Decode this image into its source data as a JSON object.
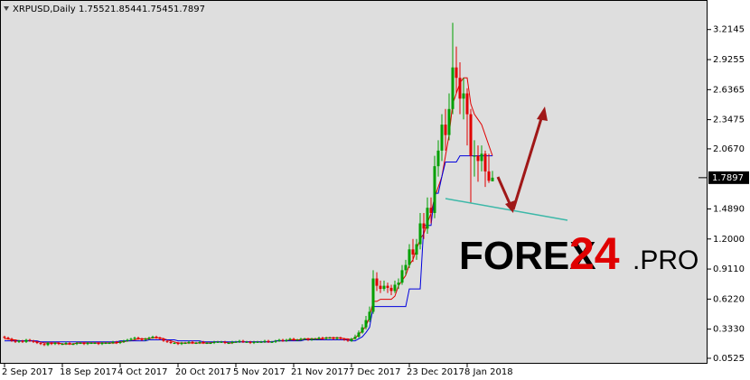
{
  "chart_data": {
    "type": "candlestick",
    "title": "XRPUSD,Daily",
    "annotations": [
      "FOREX",
      "24",
      ".PRO"
    ],
    "categories": [
      "2 Sep 2017",
      null,
      null,
      null,
      null,
      null,
      null,
      null,
      null,
      null,
      null,
      null,
      null,
      null,
      null,
      null,
      "18 Sep 2017",
      null,
      null,
      null,
      null,
      null,
      null,
      null,
      null,
      null,
      null,
      null,
      null,
      null,
      null,
      null,
      "4 Oct 2017",
      null,
      null,
      null,
      null,
      null,
      null,
      null,
      null,
      null,
      null,
      null,
      null,
      null,
      null,
      null,
      "20 Oct 2017",
      null,
      null,
      null,
      null,
      null,
      null,
      null,
      null,
      null,
      null,
      null,
      null,
      null,
      null,
      null,
      "5 Nov 2017",
      null,
      null,
      null,
      null,
      null,
      null,
      null,
      null,
      null,
      null,
      null,
      null,
      null,
      null,
      null,
      "21 Nov 2017",
      null,
      null,
      null,
      null,
      null,
      null,
      null,
      null,
      null,
      null,
      null,
      null,
      null,
      null,
      null,
      "7 Dec 2017",
      null,
      null,
      null,
      null,
      null,
      null,
      null,
      null,
      null,
      null,
      null,
      null,
      null,
      null,
      null,
      "23 Dec 2017",
      null,
      null,
      null,
      null,
      null,
      null,
      null,
      null,
      null,
      null,
      null,
      null,
      null,
      null,
      null,
      "8 Jan 2018",
      null,
      null,
      null,
      null,
      null,
      null,
      null
    ],
    "ylim": [
      0,
      3.49
    ],
    "yticks": [
      3.2145,
      2.9255,
      2.6365,
      2.3475,
      {
        "value": 2.067,
        "label": "2.0670"
      },
      {
        "value": 1.489,
        "label": "1.4890"
      },
      {
        "value": 1.2,
        "label": "1.2000"
      },
      {
        "value": 0.911,
        "label": "0.9110"
      },
      {
        "value": 0.622,
        "label": "0.6220"
      },
      {
        "value": 0.333,
        "label": "0.3330"
      },
      0.0525
    ],
    "up_color": "#00a000",
    "down_color": "#e00000",
    "series": [
      {
        "type": "candlestick",
        "values": [
          [
            0.26,
            0.27,
            0.24,
            0.25
          ],
          [
            0.25,
            0.26,
            0.23,
            0.24
          ],
          [
            0.24,
            0.25,
            0.21,
            0.22
          ],
          [
            0.22,
            0.23,
            0.2,
            0.21
          ],
          [
            0.21,
            0.23,
            0.2,
            0.22
          ],
          [
            0.22,
            0.23,
            0.2,
            0.21
          ],
          [
            0.21,
            0.24,
            0.2,
            0.23
          ],
          [
            0.23,
            0.24,
            0.21,
            0.22
          ],
          [
            0.22,
            0.23,
            0.2,
            0.21
          ],
          [
            0.21,
            0.22,
            0.19,
            0.2
          ],
          [
            0.2,
            0.21,
            0.18,
            0.19
          ],
          [
            0.19,
            0.2,
            0.17,
            0.18
          ],
          [
            0.18,
            0.21,
            0.17,
            0.2
          ],
          [
            0.2,
            0.21,
            0.18,
            0.19
          ],
          [
            0.19,
            0.21,
            0.18,
            0.2
          ],
          [
            0.2,
            0.21,
            0.18,
            0.19
          ],
          [
            0.19,
            0.2,
            0.18,
            0.19
          ],
          [
            0.19,
            0.21,
            0.18,
            0.2
          ],
          [
            0.2,
            0.21,
            0.18,
            0.19
          ],
          [
            0.19,
            0.2,
            0.18,
            0.19
          ],
          [
            0.19,
            0.21,
            0.18,
            0.2
          ],
          [
            0.2,
            0.21,
            0.19,
            0.2
          ],
          [
            0.2,
            0.21,
            0.18,
            0.19
          ],
          [
            0.19,
            0.21,
            0.18,
            0.2
          ],
          [
            0.2,
            0.21,
            0.19,
            0.2
          ],
          [
            0.2,
            0.21,
            0.19,
            0.2
          ],
          [
            0.2,
            0.21,
            0.18,
            0.19
          ],
          [
            0.19,
            0.21,
            0.18,
            0.2
          ],
          [
            0.2,
            0.21,
            0.19,
            0.2
          ],
          [
            0.2,
            0.21,
            0.19,
            0.2
          ],
          [
            0.2,
            0.22,
            0.19,
            0.21
          ],
          [
            0.21,
            0.22,
            0.19,
            0.2
          ],
          [
            0.2,
            0.22,
            0.19,
            0.21
          ],
          [
            0.21,
            0.23,
            0.2,
            0.22
          ],
          [
            0.22,
            0.24,
            0.21,
            0.23
          ],
          [
            0.23,
            0.25,
            0.22,
            0.24
          ],
          [
            0.24,
            0.26,
            0.23,
            0.25
          ],
          [
            0.25,
            0.26,
            0.23,
            0.24
          ],
          [
            0.24,
            0.25,
            0.22,
            0.23
          ],
          [
            0.23,
            0.25,
            0.22,
            0.24
          ],
          [
            0.24,
            0.26,
            0.23,
            0.25
          ],
          [
            0.25,
            0.27,
            0.24,
            0.26
          ],
          [
            0.26,
            0.27,
            0.24,
            0.25
          ],
          [
            0.25,
            0.26,
            0.23,
            0.24
          ],
          [
            0.24,
            0.25,
            0.21,
            0.22
          ],
          [
            0.22,
            0.23,
            0.2,
            0.21
          ],
          [
            0.21,
            0.22,
            0.19,
            0.2
          ],
          [
            0.2,
            0.21,
            0.19,
            0.2
          ],
          [
            0.2,
            0.21,
            0.18,
            0.19
          ],
          [
            0.19,
            0.21,
            0.18,
            0.2
          ],
          [
            0.2,
            0.21,
            0.19,
            0.2
          ],
          [
            0.2,
            0.22,
            0.19,
            0.21
          ],
          [
            0.21,
            0.22,
            0.19,
            0.2
          ],
          [
            0.2,
            0.21,
            0.19,
            0.2
          ],
          [
            0.2,
            0.22,
            0.19,
            0.21
          ],
          [
            0.21,
            0.22,
            0.19,
            0.2
          ],
          [
            0.2,
            0.21,
            0.19,
            0.2
          ],
          [
            0.2,
            0.21,
            0.19,
            0.2
          ],
          [
            0.2,
            0.22,
            0.19,
            0.21
          ],
          [
            0.21,
            0.22,
            0.2,
            0.21
          ],
          [
            0.21,
            0.22,
            0.2,
            0.21
          ],
          [
            0.21,
            0.22,
            0.19,
            0.2
          ],
          [
            0.2,
            0.21,
            0.19,
            0.2
          ],
          [
            0.2,
            0.22,
            0.19,
            0.21
          ],
          [
            0.21,
            0.22,
            0.2,
            0.21
          ],
          [
            0.21,
            0.23,
            0.2,
            0.22
          ],
          [
            0.22,
            0.23,
            0.2,
            0.21
          ],
          [
            0.21,
            0.22,
            0.2,
            0.21
          ],
          [
            0.21,
            0.22,
            0.19,
            0.2
          ],
          [
            0.2,
            0.22,
            0.19,
            0.21
          ],
          [
            0.21,
            0.22,
            0.2,
            0.21
          ],
          [
            0.21,
            0.22,
            0.2,
            0.21
          ],
          [
            0.21,
            0.23,
            0.2,
            0.22
          ],
          [
            0.22,
            0.23,
            0.2,
            0.21
          ],
          [
            0.21,
            0.22,
            0.2,
            0.21
          ],
          [
            0.21,
            0.23,
            0.2,
            0.22
          ],
          [
            0.22,
            0.24,
            0.21,
            0.23
          ],
          [
            0.23,
            0.24,
            0.21,
            0.22
          ],
          [
            0.22,
            0.24,
            0.21,
            0.23
          ],
          [
            0.23,
            0.25,
            0.22,
            0.24
          ],
          [
            0.24,
            0.25,
            0.22,
            0.23
          ],
          [
            0.23,
            0.24,
            0.22,
            0.23
          ],
          [
            0.23,
            0.25,
            0.22,
            0.24
          ],
          [
            0.24,
            0.25,
            0.23,
            0.24
          ],
          [
            0.24,
            0.25,
            0.22,
            0.23
          ],
          [
            0.23,
            0.25,
            0.22,
            0.24
          ],
          [
            0.24,
            0.25,
            0.23,
            0.24
          ],
          [
            0.24,
            0.26,
            0.23,
            0.25
          ],
          [
            0.25,
            0.26,
            0.23,
            0.24
          ],
          [
            0.24,
            0.26,
            0.23,
            0.25
          ],
          [
            0.25,
            0.26,
            0.24,
            0.25
          ],
          [
            0.25,
            0.26,
            0.23,
            0.24
          ],
          [
            0.24,
            0.26,
            0.23,
            0.25
          ],
          [
            0.25,
            0.26,
            0.23,
            0.24
          ],
          [
            0.24,
            0.25,
            0.22,
            0.23
          ],
          [
            0.23,
            0.24,
            0.21,
            0.22
          ],
          [
            0.22,
            0.25,
            0.21,
            0.24
          ],
          [
            0.24,
            0.28,
            0.23,
            0.26
          ],
          [
            0.26,
            0.32,
            0.25,
            0.3
          ],
          [
            0.3,
            0.38,
            0.29,
            0.35
          ],
          [
            0.35,
            0.46,
            0.33,
            0.42
          ],
          [
            0.42,
            0.55,
            0.4,
            0.5
          ],
          [
            0.5,
            0.9,
            0.48,
            0.82
          ],
          [
            0.82,
            0.88,
            0.7,
            0.75
          ],
          [
            0.75,
            0.8,
            0.68,
            0.72
          ],
          [
            0.72,
            0.8,
            0.7,
            0.75
          ],
          [
            0.75,
            0.78,
            0.68,
            0.73
          ],
          [
            0.73,
            0.76,
            0.66,
            0.7
          ],
          [
            0.7,
            0.8,
            0.68,
            0.76
          ],
          [
            0.76,
            0.82,
            0.72,
            0.78
          ],
          [
            0.78,
            0.95,
            0.76,
            0.9
          ],
          [
            0.9,
            1.0,
            0.85,
            0.95
          ],
          [
            0.95,
            1.15,
            0.92,
            1.1
          ],
          [
            1.1,
            1.2,
            0.98,
            1.05
          ],
          [
            1.05,
            1.2,
            1.0,
            1.15
          ],
          [
            1.15,
            1.45,
            1.1,
            1.35
          ],
          [
            1.35,
            1.45,
            1.2,
            1.3
          ],
          [
            1.3,
            1.6,
            1.25,
            1.5
          ],
          [
            1.5,
            1.6,
            1.35,
            1.45
          ],
          [
            1.45,
            2.0,
            1.4,
            1.9
          ],
          [
            1.9,
            2.15,
            1.8,
            2.05
          ],
          [
            2.05,
            2.4,
            1.95,
            2.3
          ],
          [
            2.3,
            2.45,
            2.05,
            2.2
          ],
          [
            2.2,
            2.6,
            2.15,
            2.45
          ],
          [
            2.45,
            3.28,
            2.4,
            2.85
          ],
          [
            2.85,
            3.05,
            2.6,
            2.75
          ],
          [
            2.75,
            2.9,
            2.4,
            2.55
          ],
          [
            2.55,
            2.75,
            2.35,
            2.6
          ],
          [
            2.6,
            2.65,
            2.1,
            2.4
          ],
          [
            2.4,
            2.45,
            1.55,
            2.0
          ],
          [
            2.0,
            2.15,
            1.8,
            2.0
          ],
          [
            2.0,
            2.1,
            1.75,
            1.95
          ],
          [
            1.95,
            2.1,
            1.85,
            2.02
          ],
          [
            2.02,
            2.05,
            1.7,
            1.85
          ],
          [
            1.85,
            2.02,
            1.74,
            1.76
          ],
          [
            1.7552,
            1.8544,
            1.7545,
            1.7897
          ]
        ]
      },
      {
        "type": "line",
        "color": "#e00000",
        "values": [
          0.24,
          0.24,
          0.23,
          0.23,
          0.22,
          0.22,
          0.22,
          0.22,
          0.22,
          0.21,
          0.21,
          0.2,
          0.2,
          0.2,
          0.2,
          0.2,
          0.19,
          0.19,
          0.19,
          0.19,
          0.2,
          0.2,
          0.2,
          0.2,
          0.2,
          0.2,
          0.2,
          0.2,
          0.2,
          0.2,
          0.2,
          0.2,
          0.21,
          0.21,
          0.22,
          0.22,
          0.23,
          0.24,
          0.24,
          0.24,
          0.24,
          0.25,
          0.25,
          0.25,
          0.24,
          0.23,
          0.22,
          0.21,
          0.2,
          0.2,
          0.2,
          0.2,
          0.2,
          0.2,
          0.2,
          0.2,
          0.2,
          0.2,
          0.21,
          0.21,
          0.21,
          0.21,
          0.2,
          0.2,
          0.21,
          0.21,
          0.21,
          0.21,
          0.21,
          0.21,
          0.21,
          0.21,
          0.21,
          0.21,
          0.21,
          0.22,
          0.22,
          0.22,
          0.22,
          0.23,
          0.23,
          0.23,
          0.23,
          0.24,
          0.24,
          0.24,
          0.24,
          0.24,
          0.24,
          0.25,
          0.25,
          0.25,
          0.25,
          0.25,
          0.24,
          0.24,
          0.23,
          0.25,
          0.28,
          0.32,
          0.36,
          0.45,
          0.6,
          0.6,
          0.62,
          0.62,
          0.62,
          0.62,
          0.65,
          0.75,
          0.8,
          0.85,
          0.95,
          1.0,
          1.1,
          1.2,
          1.25,
          1.35,
          1.45,
          1.6,
          1.7,
          1.8,
          2.0,
          2.2,
          2.5,
          2.6,
          2.7,
          2.75,
          2.75,
          2.5,
          2.4,
          2.35,
          2.3,
          2.2,
          2.1,
          2.0
        ]
      },
      {
        "type": "line",
        "color": "#0000dd",
        "values": [
          0.22,
          0.22,
          0.22,
          0.22,
          0.22,
          0.22,
          0.22,
          0.22,
          0.22,
          0.22,
          0.21,
          0.21,
          0.21,
          0.21,
          0.21,
          0.21,
          0.21,
          0.21,
          0.21,
          0.21,
          0.21,
          0.21,
          0.21,
          0.21,
          0.21,
          0.21,
          0.21,
          0.21,
          0.21,
          0.21,
          0.21,
          0.21,
          0.22,
          0.22,
          0.22,
          0.22,
          0.22,
          0.22,
          0.22,
          0.22,
          0.23,
          0.23,
          0.23,
          0.23,
          0.23,
          0.23,
          0.23,
          0.23,
          0.22,
          0.22,
          0.22,
          0.22,
          0.22,
          0.22,
          0.22,
          0.21,
          0.21,
          0.21,
          0.21,
          0.21,
          0.21,
          0.21,
          0.21,
          0.21,
          0.21,
          0.21,
          0.21,
          0.21,
          0.21,
          0.21,
          0.21,
          0.21,
          0.21,
          0.21,
          0.21,
          0.22,
          0.22,
          0.22,
          0.22,
          0.22,
          0.22,
          0.22,
          0.22,
          0.23,
          0.23,
          0.23,
          0.23,
          0.23,
          0.23,
          0.23,
          0.23,
          0.23,
          0.23,
          0.23,
          0.23,
          0.23,
          0.22,
          0.22,
          0.24,
          0.26,
          0.3,
          0.35,
          0.55,
          0.55,
          0.55,
          0.55,
          0.55,
          0.55,
          0.55,
          0.55,
          0.55,
          0.55,
          0.72,
          0.72,
          0.72,
          0.72,
          1.33,
          1.33,
          1.33,
          1.64,
          1.64,
          1.8,
          1.94,
          1.94,
          1.94,
          1.94,
          2.0,
          2.0,
          2.0,
          2.0,
          2.0,
          2.0,
          2.0,
          2.0,
          2.0,
          2.0
        ]
      }
    ]
  }
}
